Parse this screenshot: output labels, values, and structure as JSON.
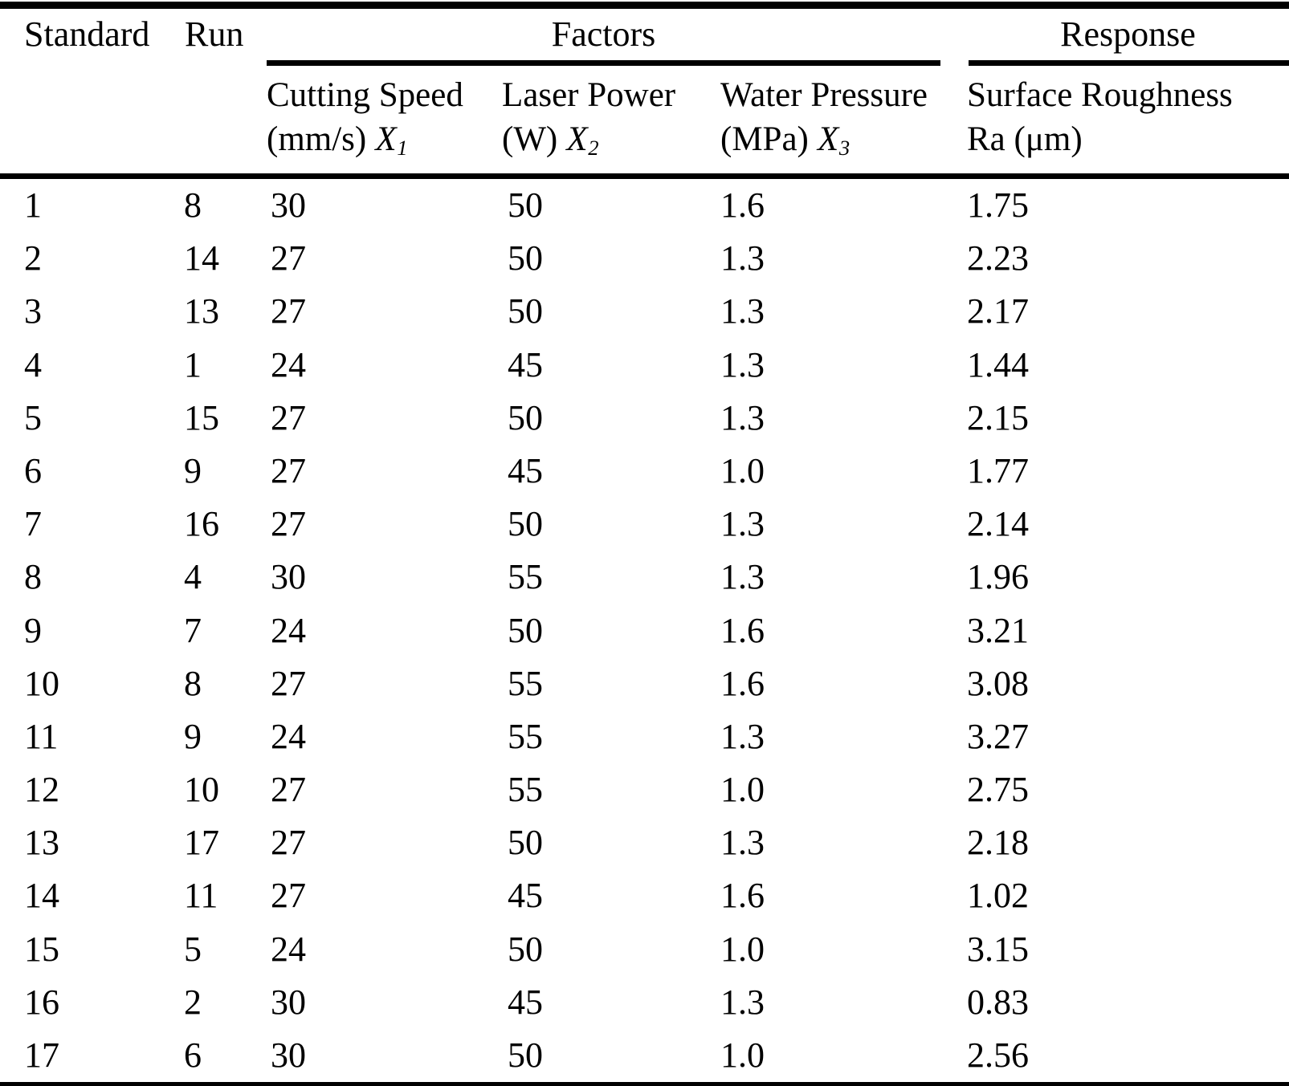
{
  "colors": {
    "text": "#000000",
    "background": "#ffffff",
    "rule": "#000000"
  },
  "table": {
    "title_row": {
      "standard": "Standard",
      "run": "Run",
      "factors": "Factors",
      "response": "Response"
    },
    "subheaders": {
      "cutting_speed": {
        "line1": "Cutting Speed",
        "unit": "(mm/s)",
        "symbol": "X",
        "sub": "1"
      },
      "laser_power": {
        "line1": "Laser Power",
        "unit": "(W)",
        "symbol": "X",
        "sub": "2"
      },
      "water_pressure": {
        "line1": "Water Pressure",
        "unit": "(MPa)",
        "symbol": "X",
        "sub": "3"
      },
      "response": {
        "line1": "Surface Roughness",
        "line2": "Ra (μm)"
      }
    },
    "rows": [
      {
        "standard": "1",
        "run": "8",
        "cutting_speed": "30",
        "laser_power": "50",
        "water_pressure": "1.6",
        "ra": "1.75"
      },
      {
        "standard": "2",
        "run": "14",
        "cutting_speed": "27",
        "laser_power": "50",
        "water_pressure": "1.3",
        "ra": "2.23"
      },
      {
        "standard": "3",
        "run": "13",
        "cutting_speed": "27",
        "laser_power": "50",
        "water_pressure": "1.3",
        "ra": "2.17"
      },
      {
        "standard": "4",
        "run": "1",
        "cutting_speed": "24",
        "laser_power": "45",
        "water_pressure": "1.3",
        "ra": "1.44"
      },
      {
        "standard": "5",
        "run": "15",
        "cutting_speed": "27",
        "laser_power": "50",
        "water_pressure": "1.3",
        "ra": "2.15"
      },
      {
        "standard": "6",
        "run": "9",
        "cutting_speed": "27",
        "laser_power": "45",
        "water_pressure": "1.0",
        "ra": "1.77"
      },
      {
        "standard": "7",
        "run": "16",
        "cutting_speed": "27",
        "laser_power": "50",
        "water_pressure": "1.3",
        "ra": "2.14"
      },
      {
        "standard": "8",
        "run": "4",
        "cutting_speed": "30",
        "laser_power": "55",
        "water_pressure": "1.3",
        "ra": "1.96"
      },
      {
        "standard": "9",
        "run": "7",
        "cutting_speed": "24",
        "laser_power": "50",
        "water_pressure": "1.6",
        "ra": "3.21"
      },
      {
        "standard": "10",
        "run": "8",
        "cutting_speed": "27",
        "laser_power": "55",
        "water_pressure": "1.6",
        "ra": "3.08"
      },
      {
        "standard": "11",
        "run": "9",
        "cutting_speed": "24",
        "laser_power": "55",
        "water_pressure": "1.3",
        "ra": "3.27"
      },
      {
        "standard": "12",
        "run": "10",
        "cutting_speed": "27",
        "laser_power": "55",
        "water_pressure": "1.0",
        "ra": "2.75"
      },
      {
        "standard": "13",
        "run": "17",
        "cutting_speed": "27",
        "laser_power": "50",
        "water_pressure": "1.3",
        "ra": "2.18"
      },
      {
        "standard": "14",
        "run": "11",
        "cutting_speed": "27",
        "laser_power": "45",
        "water_pressure": "1.6",
        "ra": "1.02"
      },
      {
        "standard": "15",
        "run": "5",
        "cutting_speed": "24",
        "laser_power": "50",
        "water_pressure": "1.0",
        "ra": "3.15"
      },
      {
        "standard": "16",
        "run": "2",
        "cutting_speed": "30",
        "laser_power": "45",
        "water_pressure": "1.3",
        "ra": "0.83"
      },
      {
        "standard": "17",
        "run": "6",
        "cutting_speed": "30",
        "laser_power": "50",
        "water_pressure": "1.0",
        "ra": "2.56"
      }
    ]
  }
}
